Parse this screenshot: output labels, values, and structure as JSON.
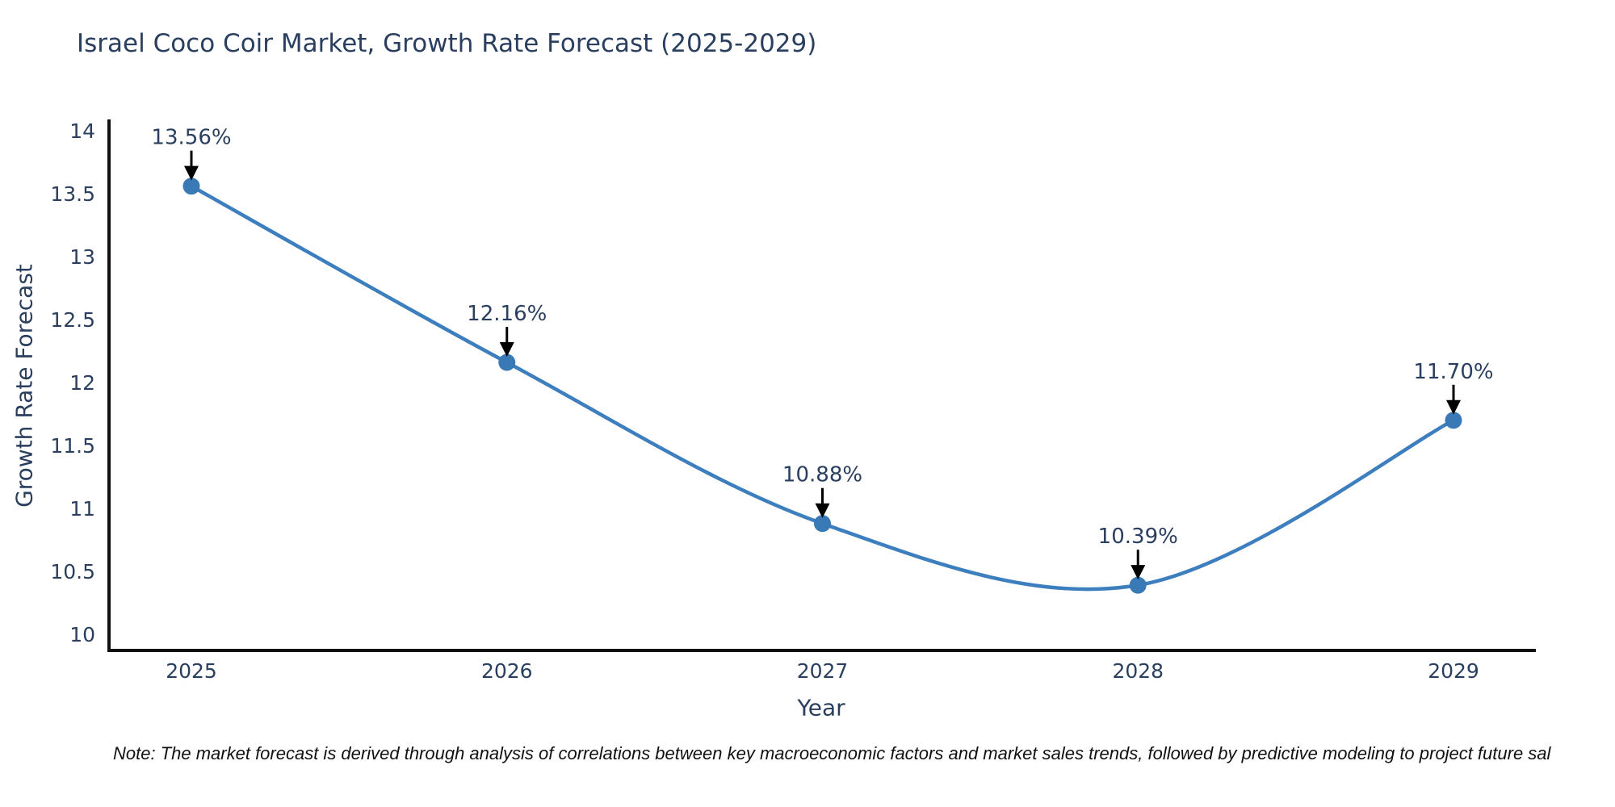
{
  "title": "Israel Coco Coir Market, Growth Rate Forecast (2025-2029)",
  "note": "Note: The market forecast is derived through analysis of correlations between key macroeconomic factors and market sales trends, followed by predictive modeling to project future sal",
  "chart_data": {
    "type": "line",
    "title": "Israel Coco Coir Market, Growth Rate Forecast (2025-2029)",
    "x": [
      "2025",
      "2026",
      "2027",
      "2028",
      "2029"
    ],
    "y": [
      13.56,
      12.16,
      10.88,
      10.39,
      11.7
    ],
    "point_labels": [
      "13.56%",
      "12.16%",
      "10.88%",
      "10.39%",
      "11.70%"
    ],
    "xlabel": "Year",
    "ylabel": "Growth Rate Forecast",
    "ylim": [
      10,
      14
    ],
    "yticks": [
      "14",
      "13.5",
      "13",
      "12.5",
      "12",
      "11.5",
      "11",
      "10.5",
      "10"
    ],
    "ytick_values": [
      14,
      13.5,
      13,
      12.5,
      12,
      11.5,
      11,
      10.5,
      10
    ],
    "line_shape": "spline",
    "grid": false,
    "legend": "none",
    "line_color": "#3d7fbe",
    "marker_color": "#3879b6",
    "axis_color": "#111111",
    "text_color": "#2a3f5f",
    "annotation_color": "#2a3f5f",
    "arrow_color": "#000000"
  }
}
